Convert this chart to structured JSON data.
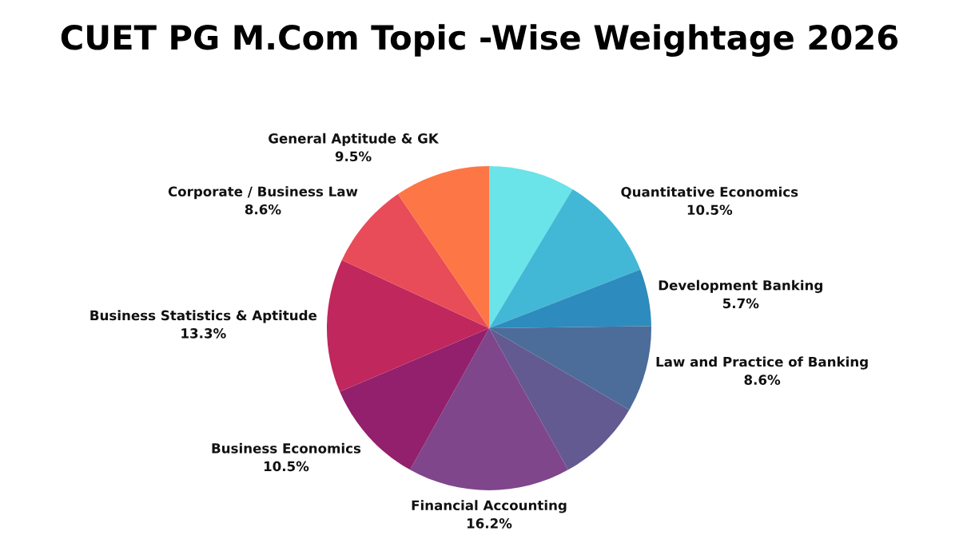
{
  "chart_data": {
    "type": "pie",
    "title": "CUET PG M.Com Topic -Wise Weightage 2026",
    "categories": [
      null,
      "Quantitative Economics",
      "Development Banking",
      "Law and Practice of Banking",
      null,
      "Financial Accounting",
      "Business Economics",
      "Business Statistics & Aptitude",
      "Corporate / Business Law",
      "General Aptitude & GK"
    ],
    "values": [
      8.6,
      10.5,
      5.7,
      8.6,
      8.5,
      16.2,
      10.5,
      13.3,
      8.6,
      9.5
    ],
    "value_labels": [
      null,
      "10.5%",
      "5.7%",
      "8.6%",
      null,
      "16.2%",
      "10.5%",
      "13.3%",
      "8.6%",
      "9.5%"
    ],
    "colors": [
      "#6ae4e8",
      "#42b8d6",
      "#2e8bbd",
      "#4c6d99",
      "#625a91",
      "#7f468c",
      "#93206c",
      "#c0275c",
      "#e84c58",
      "#fd7645"
    ]
  }
}
